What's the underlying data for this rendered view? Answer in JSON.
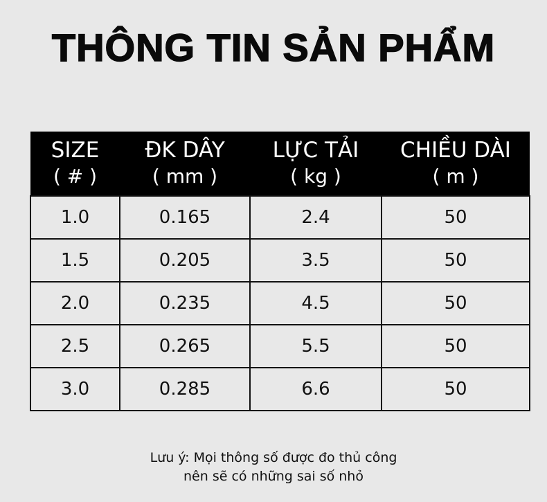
{
  "title": "THÔNG TIN SẢN PHẨM",
  "table": {
    "headers": [
      {
        "label": "SIZE",
        "unit": "( # )"
      },
      {
        "label": "ĐK DÂY",
        "unit": "( mm )"
      },
      {
        "label": "LỰC TẢI",
        "unit": "( kg )"
      },
      {
        "label": "CHIỀU DÀI",
        "unit": "( m )"
      }
    ],
    "rows": [
      [
        "1.0",
        "0.165",
        "2.4",
        "50"
      ],
      [
        "1.5",
        "0.205",
        "3.5",
        "50"
      ],
      [
        "2.0",
        "0.235",
        "4.5",
        "50"
      ],
      [
        "2.5",
        "0.265",
        "5.5",
        "50"
      ],
      [
        "3.0",
        "0.285",
        "6.6",
        "50"
      ]
    ]
  },
  "note": {
    "line1": "Lưu ý: Mọi thông số được đo thủ công",
    "line2": "nên sẽ có những sai số nhỏ"
  },
  "colors": {
    "background": "#e8e8e8",
    "header_bg": "#000000",
    "header_text": "#ffffff"
  }
}
